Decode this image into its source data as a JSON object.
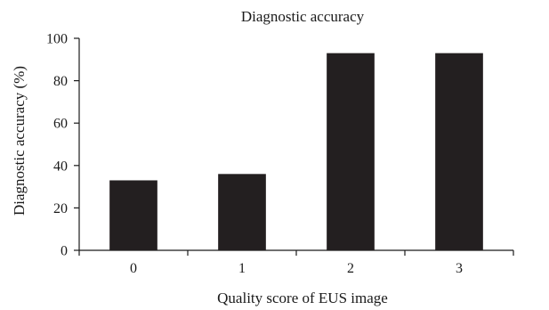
{
  "chart_data": {
    "type": "bar",
    "title": "Diagnostic accuracy",
    "xlabel": "Quality score of EUS image",
    "ylabel": "Diagnostic accuracy (%)",
    "categories": [
      "0",
      "1",
      "2",
      "3"
    ],
    "values": [
      33,
      36,
      93,
      93
    ],
    "ylim": [
      0,
      100
    ],
    "yticks": [
      "0",
      "20",
      "40",
      "60",
      "80",
      "100"
    ],
    "grid": false,
    "legend": "none",
    "bar_color": "#231f20"
  }
}
